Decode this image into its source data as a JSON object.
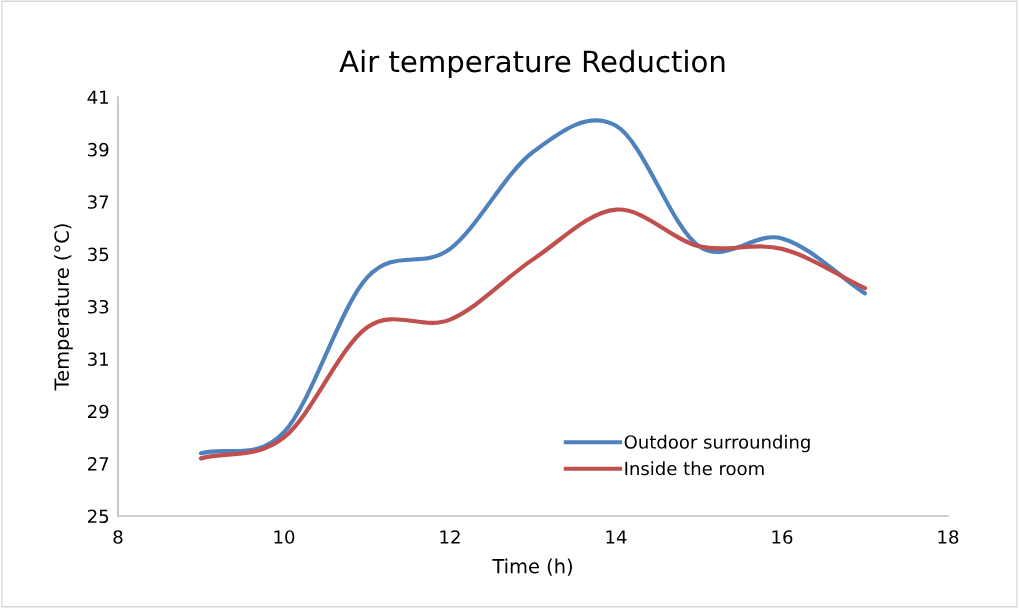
{
  "chart_data": {
    "type": "line",
    "title": "Air temperature Reduction",
    "xlabel": "Time (h)",
    "ylabel": "Temperature (°C)",
    "x": [
      9,
      10,
      11,
      12,
      13,
      14,
      15,
      16,
      17
    ],
    "series": [
      {
        "name": "Outdoor surrounding",
        "color": "#4f81bd",
        "values": [
          27.4,
          28.2,
          34.1,
          35.2,
          38.9,
          39.9,
          35.3,
          35.6,
          33.5
        ]
      },
      {
        "name": "Inside the room",
        "color": "#c0504d",
        "values": [
          27.2,
          28.0,
          32.2,
          32.5,
          34.8,
          36.7,
          35.3,
          35.2,
          33.7
        ]
      }
    ],
    "xlim": [
      8,
      18
    ],
    "xticks": [
      8,
      10,
      12,
      14,
      16,
      18
    ],
    "ylim": [
      25,
      41
    ],
    "yticks": [
      25,
      27,
      29,
      31,
      33,
      35,
      37,
      39,
      41
    ],
    "grid": false,
    "legend": "bottom right",
    "marker": "none",
    "line_style": "solid"
  }
}
